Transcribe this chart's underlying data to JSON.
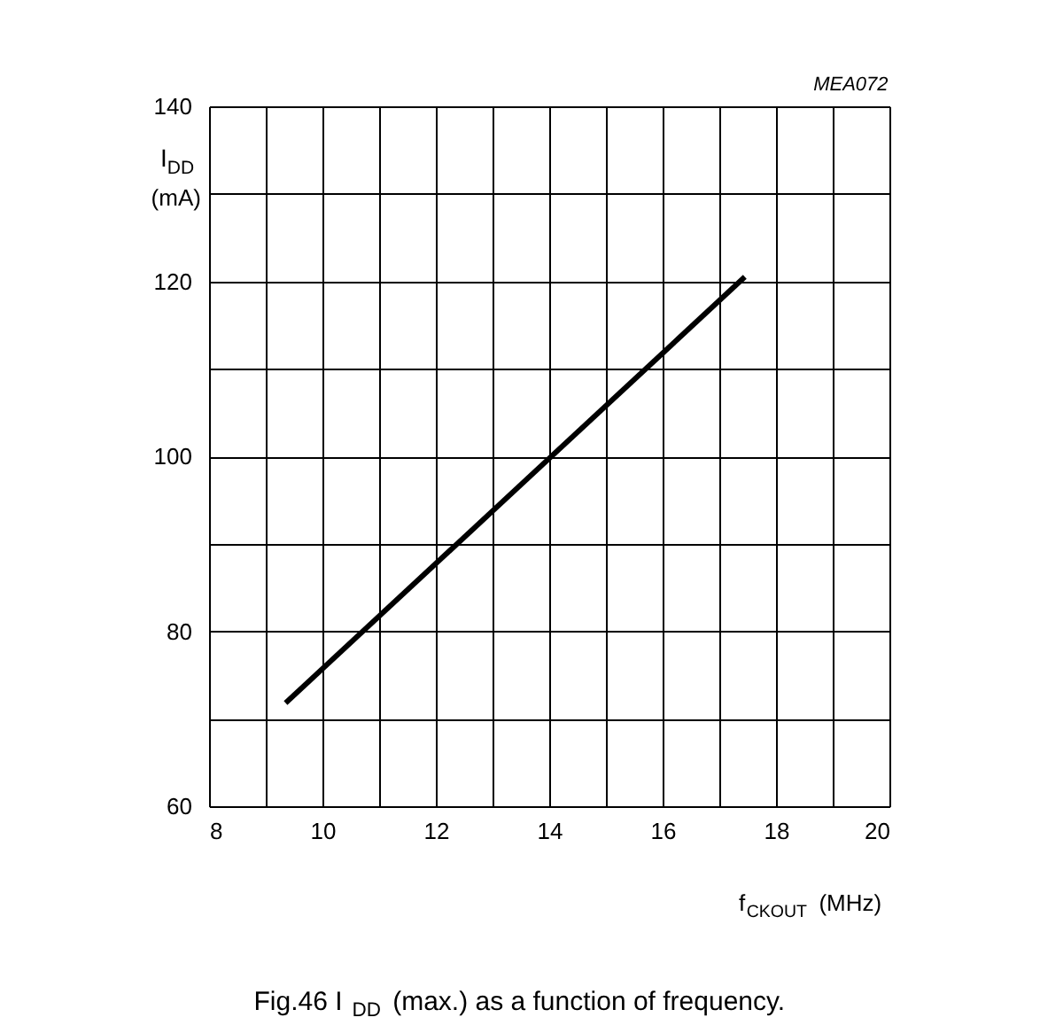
{
  "chart_data": {
    "type": "line",
    "title": "Fig.46 I$_{DD}$ (max.) as a function of frequency.",
    "xlabel": "f$_{CKOUT}$ (MHz)",
    "ylabel": "I$_{DD}$ (mA)",
    "annotations": [
      "MEA072"
    ],
    "series": [
      {
        "color": "#000000",
        "x": [
          9.35,
          17.45
        ],
        "values": [
          71.8,
          120.5
        ]
      }
    ],
    "xlim": [
      8,
      20
    ],
    "ylim": [
      60,
      140
    ],
    "xticks": [
      8,
      {
        "value": 9,
        "label": null
      },
      10,
      {
        "value": 11,
        "label": null
      },
      12,
      {
        "value": 13,
        "label": null
      },
      14,
      {
        "value": 15,
        "label": null
      },
      16,
      {
        "value": 17,
        "label": null
      },
      18,
      {
        "value": 19,
        "label": null
      },
      20
    ],
    "yticks": [
      60,
      {
        "value": 70,
        "label": null
      },
      80,
      {
        "value": 90,
        "label": null
      },
      100,
      {
        "value": 110,
        "label": null
      },
      120,
      {
        "value": 130,
        "label": null
      },
      140
    ],
    "grid": true,
    "marker": "none",
    "line_style": "solid",
    "legend": false
  }
}
